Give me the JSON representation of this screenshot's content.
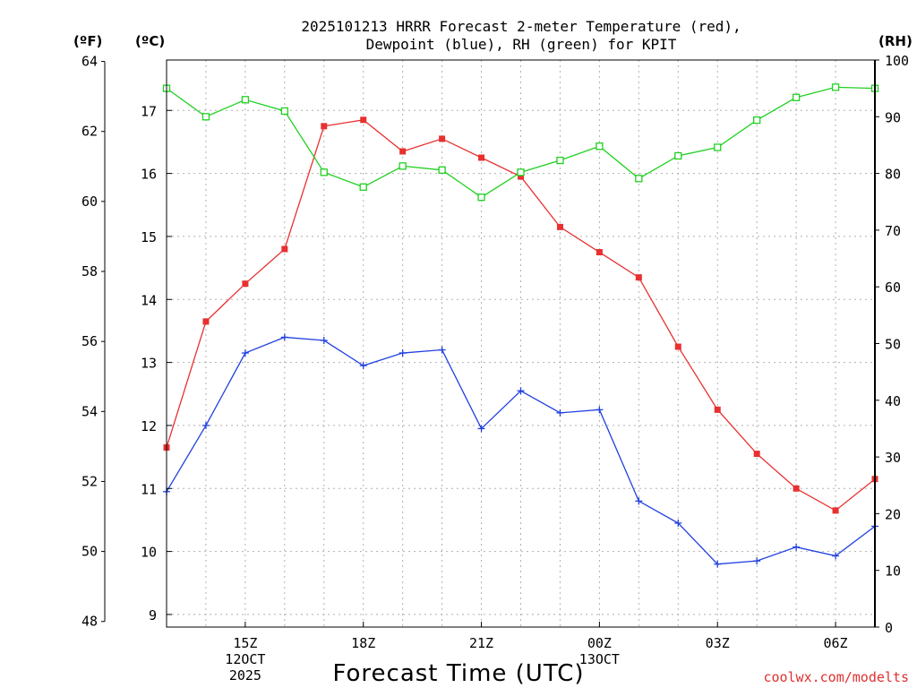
{
  "chart_data": {
    "type": "line",
    "title_line1": "2025101213 HRRR Forecast 2-meter Temperature (red),",
    "title_line2": "Dewpoint (blue), RH (green) for KPIT",
    "xlabel": "Forecast Time (UTC)",
    "credit": "coolwx.com/modelts",
    "unit_f": "(ºF)",
    "unit_c": "(ºC)",
    "unit_rh": "(RH)",
    "x": [
      13,
      14,
      15,
      16,
      17,
      18,
      19,
      20,
      21,
      22,
      23,
      24,
      25,
      26,
      27,
      28,
      29,
      30,
      31
    ],
    "xlim": [
      13,
      31
    ],
    "x_ticks": [
      {
        "x": 15,
        "label": "15Z",
        "sub": [
          "12OCT",
          "2025"
        ]
      },
      {
        "x": 18,
        "label": "18Z",
        "sub": []
      },
      {
        "x": 21,
        "label": "21Z",
        "sub": []
      },
      {
        "x": 24,
        "label": "00Z",
        "sub": [
          "13OCT"
        ]
      },
      {
        "x": 27,
        "label": "03Z",
        "sub": []
      },
      {
        "x": 30,
        "label": "06Z",
        "sub": []
      }
    ],
    "ylim_c": [
      8.8,
      17.8
    ],
    "c_ticks": [
      9,
      10,
      11,
      12,
      13,
      14,
      15,
      16,
      17
    ],
    "f_ticks": [
      48,
      50,
      52,
      54,
      56,
      58,
      60,
      62,
      64
    ],
    "ylim_rh": [
      0,
      100
    ],
    "rh_ticks": [
      0,
      10,
      20,
      30,
      40,
      50,
      60,
      70,
      80,
      90,
      100
    ],
    "series": [
      {
        "name": "Temperature",
        "unit": "C",
        "color": "#e83030",
        "marker": "filled-square",
        "values": [
          11.65,
          13.65,
          14.25,
          14.8,
          16.75,
          16.85,
          16.35,
          16.55,
          16.25,
          15.95,
          15.15,
          14.75,
          14.35,
          13.25,
          12.25,
          11.55,
          11.0,
          10.65,
          11.15
        ]
      },
      {
        "name": "Dewpoint",
        "unit": "C",
        "color": "#2040e0",
        "marker": "plus",
        "values": [
          10.95,
          12.0,
          13.15,
          13.4,
          13.35,
          12.95,
          13.15,
          13.2,
          11.95,
          12.55,
          12.2,
          12.25,
          10.8,
          10.45,
          9.8,
          9.85,
          10.07,
          9.93,
          10.4
        ]
      },
      {
        "name": "RH",
        "unit": "%",
        "color": "#20d020",
        "marker": "open-square",
        "values": [
          95,
          90,
          93,
          91,
          80.2,
          77.6,
          81.3,
          80.6,
          75.8,
          80.2,
          82.3,
          84.8,
          79.1,
          83.1,
          84.6,
          89.4,
          93.4,
          95.2,
          95
        ]
      }
    ]
  }
}
